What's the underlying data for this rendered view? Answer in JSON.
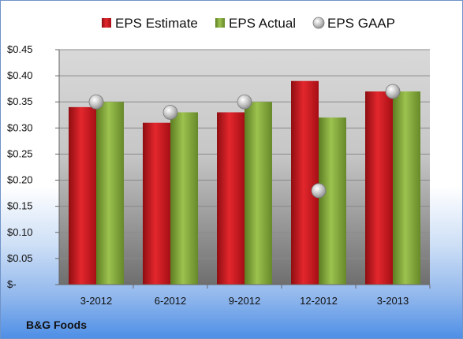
{
  "chart_data": {
    "type": "bar",
    "categories": [
      "3-2012",
      "6-2012",
      "9-2012",
      "12-2012",
      "3-2013"
    ],
    "series": [
      {
        "name": "EPS Estimate",
        "kind": "bar",
        "values": [
          0.34,
          0.31,
          0.33,
          0.39,
          0.37
        ],
        "color": "#c0161c"
      },
      {
        "name": "EPS Actual",
        "kind": "bar",
        "values": [
          0.35,
          0.33,
          0.35,
          0.32,
          0.37
        ],
        "color": "#7fa33a"
      },
      {
        "name": "EPS GAAP",
        "kind": "scatter",
        "values": [
          0.35,
          0.33,
          0.35,
          0.18,
          0.37
        ],
        "color": "#b8b8b8"
      }
    ],
    "y_ticks": [
      "$-",
      "$0.05",
      "$0.10",
      "$0.15",
      "$0.20",
      "$0.25",
      "$0.30",
      "$0.35",
      "$0.40",
      "$0.45"
    ],
    "ylim": [
      0,
      0.45
    ],
    "grid": true,
    "legend_position": "top-center"
  },
  "footer": {
    "company": "B&G Foods"
  }
}
